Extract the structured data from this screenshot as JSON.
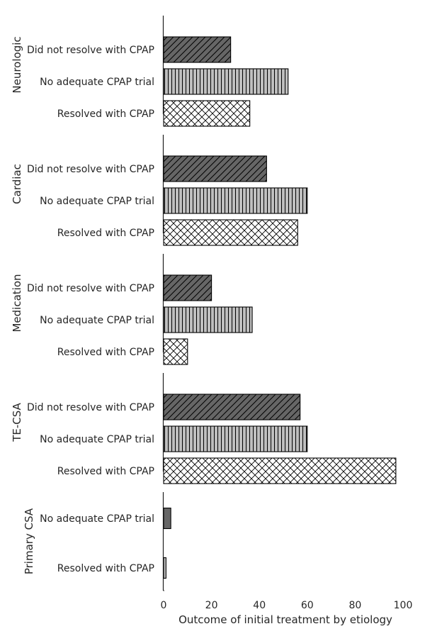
{
  "chart_data": {
    "type": "bar",
    "orientation": "horizontal",
    "xlabel": "Outcome of initial treatment by etiology",
    "xlim": [
      0,
      100
    ],
    "xticks": [
      "0",
      "20",
      "40",
      "60",
      "80",
      "100"
    ],
    "grid": false,
    "legend": "none",
    "colors": {
      "Did not resolve with CPAP": "#666666",
      "No adequate CPAP trial": "#bfbfbf",
      "Resolved with CPAP": "#ffffff",
      "Primary CSA": "#666666"
    },
    "hatches": {
      "Did not resolve with CPAP": "diagonal",
      "No adequate CPAP trial": "vertical",
      "Resolved with CPAP": "crosshatch"
    },
    "panels": [
      {
        "group": "Neurologic",
        "bars": [
          {
            "label": "Did not resolve with CPAP",
            "value": 28
          },
          {
            "label": "No adequate CPAP trial",
            "value": 52
          },
          {
            "label": "Resolved with CPAP",
            "value": 36
          }
        ]
      },
      {
        "group": "Cardiac",
        "bars": [
          {
            "label": "Did not resolve with CPAP",
            "value": 43
          },
          {
            "label": "No adequate CPAP trial",
            "value": 60
          },
          {
            "label": "Resolved with CPAP",
            "value": 56
          }
        ]
      },
      {
        "group": "Medication",
        "bars": [
          {
            "label": "Did not resolve with CPAP",
            "value": 20
          },
          {
            "label": "No adequate CPAP trial",
            "value": 37
          },
          {
            "label": "Resolved with CPAP",
            "value": 10
          }
        ]
      },
      {
        "group": "TE-CSA",
        "bars": [
          {
            "label": "Did not resolve with CPAP",
            "value": 57
          },
          {
            "label": "No adequate CPAP trial",
            "value": 60
          },
          {
            "label": "Resolved with CPAP",
            "value": 97
          }
        ]
      },
      {
        "group": "Primary CSA",
        "bars": [
          {
            "label": "No adequate CPAP trial",
            "value": 3
          },
          {
            "label": "Resolved with CPAP",
            "value": 1
          }
        ]
      }
    ]
  }
}
